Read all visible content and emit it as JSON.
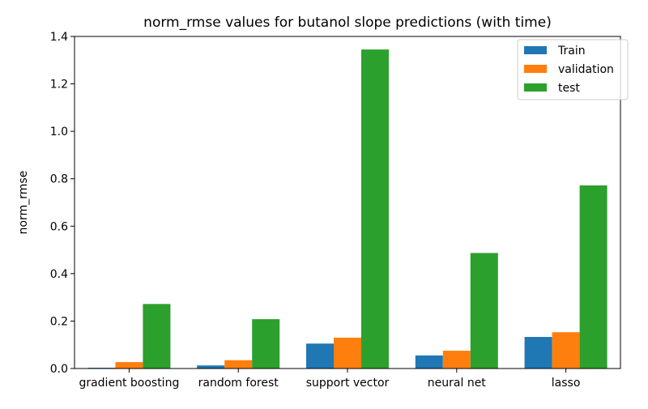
{
  "chart_data": {
    "type": "bar",
    "title": "norm_rmse values for butanol slope predictions (with time)",
    "xlabel": "",
    "ylabel": "norm_rmse",
    "ylim": [
      0,
      1.4
    ],
    "yticks": [
      "0.0",
      "0.2",
      "0.4",
      "0.6",
      "0.8",
      "1.0",
      "1.2",
      "1.4"
    ],
    "categories": [
      "gradient boosting",
      "random forest",
      "support vector",
      "neural net",
      "lasso"
    ],
    "series": [
      {
        "name": "Train",
        "color": "#1f77b4",
        "values": [
          0.003,
          0.013,
          0.105,
          0.055,
          0.133
        ]
      },
      {
        "name": "validation",
        "color": "#ff7f0e",
        "values": [
          0.027,
          0.035,
          0.13,
          0.075,
          0.153
        ]
      },
      {
        "name": "test",
        "color": "#2ca02c",
        "values": [
          0.272,
          0.208,
          1.345,
          0.487,
          0.772
        ]
      }
    ],
    "legend_position": "top-right",
    "grid": false
  }
}
